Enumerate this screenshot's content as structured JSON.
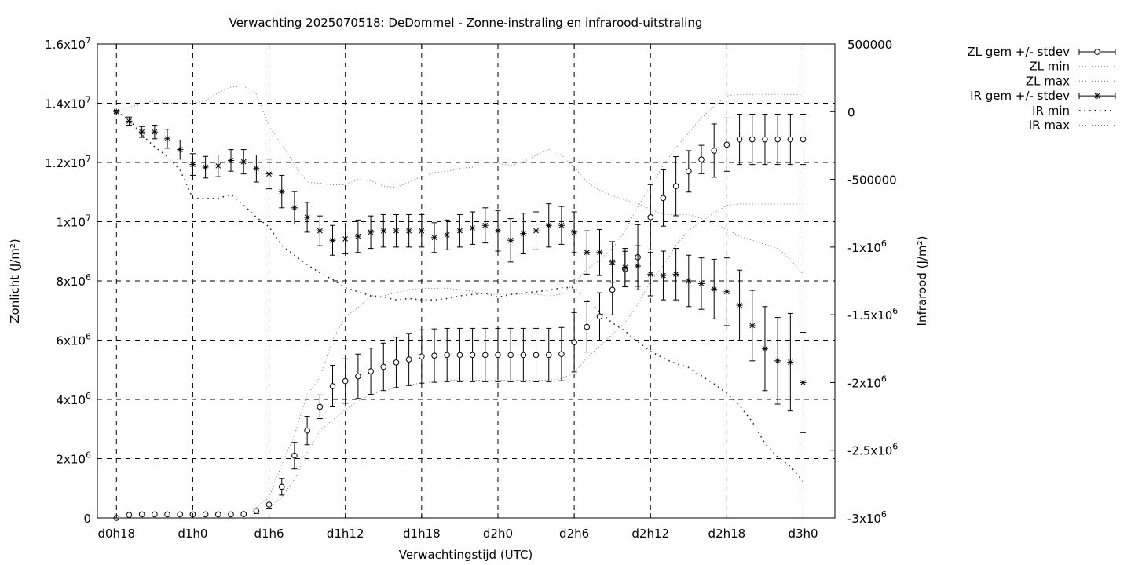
{
  "chart_data": {
    "type": "line",
    "title": "Verwachting 2025070518: DeDommel - Zonne-instraling en infrarood-uitstraling",
    "xlabel": "Verwachtingstijd (UTC)",
    "ylabel": "Zonlicht (J/m²)",
    "y2label": "Infrarood (J/m²)",
    "x_unit": "hours since d0h18",
    "xlim": [
      -1.5,
      56.5
    ],
    "ylim": [
      0,
      16000000
    ],
    "y2lim": [
      -3000000,
      500000
    ],
    "x_ticks": [
      {
        "x": 0,
        "label": "d0h18"
      },
      {
        "x": 6,
        "label": "d1h0"
      },
      {
        "x": 12,
        "label": "d1h6"
      },
      {
        "x": 18,
        "label": "d1h12"
      },
      {
        "x": 24,
        "label": "d1h18"
      },
      {
        "x": 30,
        "label": "d2h0"
      },
      {
        "x": 36,
        "label": "d2h6"
      },
      {
        "x": 42,
        "label": "d2h12"
      },
      {
        "x": 48,
        "label": "d2h18"
      },
      {
        "x": 54,
        "label": "d3h0"
      }
    ],
    "y_ticks": [
      {
        "v": 0,
        "mant": "0",
        "exp": ""
      },
      {
        "v": 2000000,
        "mant": "2x10",
        "exp": "6"
      },
      {
        "v": 4000000,
        "mant": "4x10",
        "exp": "6"
      },
      {
        "v": 6000000,
        "mant": "6x10",
        "exp": "6"
      },
      {
        "v": 8000000,
        "mant": "8x10",
        "exp": "6"
      },
      {
        "v": 10000000,
        "mant": "1x10",
        "exp": "7"
      },
      {
        "v": 12000000,
        "mant": "1.2x10",
        "exp": "7"
      },
      {
        "v": 14000000,
        "mant": "1.4x10",
        "exp": "7"
      },
      {
        "v": 16000000,
        "mant": "1.6x10",
        "exp": "7"
      }
    ],
    "y2_ticks": [
      {
        "v": 500000,
        "mant": "500000",
        "exp": ""
      },
      {
        "v": 0,
        "mant": "0",
        "exp": ""
      },
      {
        "v": -500000,
        "mant": "-500000",
        "exp": ""
      },
      {
        "v": -1000000,
        "mant": "-1x10",
        "exp": "6"
      },
      {
        "v": -1500000,
        "mant": "-1.5x10",
        "exp": "6"
      },
      {
        "v": -2000000,
        "mant": "-2x10",
        "exp": "6"
      },
      {
        "v": -2500000,
        "mant": "-2.5x10",
        "exp": "6"
      },
      {
        "v": -3000000,
        "mant": "-3x10",
        "exp": "6"
      }
    ],
    "grid": true,
    "legend_position": "top-right, outside plot",
    "series": [
      {
        "name": "ZL gem +/- stdev",
        "axis": "y",
        "style": "points-errorbars",
        "marker": "circle",
        "x": [
          0,
          1,
          2,
          3,
          4,
          5,
          6,
          7,
          8,
          9,
          10,
          11,
          12,
          13,
          14,
          15,
          16,
          17,
          18,
          19,
          20,
          21,
          22,
          23,
          24,
          25,
          26,
          27,
          28,
          29,
          30,
          31,
          32,
          33,
          34,
          35,
          36,
          37,
          38,
          39,
          40,
          41,
          42,
          43,
          44,
          45,
          46,
          47,
          48,
          49,
          50,
          51,
          52,
          53,
          54
        ],
        "y": [
          0,
          100000,
          120000,
          120000,
          120000,
          120000,
          120000,
          120000,
          120000,
          120000,
          130000,
          230000,
          450000,
          1050000,
          2100000,
          2950000,
          3750000,
          4450000,
          4620000,
          4780000,
          4950000,
          5100000,
          5250000,
          5350000,
          5450000,
          5480000,
          5500000,
          5500000,
          5500000,
          5500000,
          5500000,
          5500000,
          5500000,
          5500000,
          5500000,
          5530000,
          5930000,
          6450000,
          6800000,
          7700000,
          8400000,
          8800000,
          10150000,
          10800000,
          11200000,
          11700000,
          12100000,
          12400000,
          12600000,
          12780000,
          12780000,
          12780000,
          12780000,
          12780000,
          12780000
        ],
        "stdev": [
          0,
          20000,
          20000,
          20000,
          20000,
          20000,
          20000,
          20000,
          20000,
          20000,
          30000,
          80000,
          120000,
          280000,
          450000,
          480000,
          400000,
          700000,
          750000,
          750000,
          780000,
          800000,
          850000,
          880000,
          900000,
          900000,
          900000,
          900000,
          900000,
          900000,
          900000,
          900000,
          900000,
          900000,
          900000,
          900000,
          1000000,
          850000,
          800000,
          850000,
          600000,
          1100000,
          1100000,
          950000,
          1000000,
          700000,
          480000,
          900000,
          900000,
          850000,
          850000,
          850000,
          850000,
          850000,
          850000
        ]
      },
      {
        "name": "ZL min",
        "axis": "y",
        "style": "dotted",
        "x": [
          11,
          12,
          13,
          14,
          15,
          16,
          17,
          18,
          19,
          20,
          21,
          22,
          23,
          24,
          25,
          26,
          27,
          28,
          29,
          30,
          31,
          32,
          33,
          34,
          35,
          36,
          37,
          38,
          39,
          40,
          41,
          42,
          43,
          44,
          45,
          46,
          47,
          48,
          49,
          50,
          51,
          52,
          53,
          54
        ],
        "y": [
          150000,
          350000,
          700000,
          1300000,
          2200000,
          2950000,
          3300000,
          3650000,
          3950000,
          4150000,
          4300000,
          4400000,
          4500000,
          4550000,
          4600000,
          4650000,
          4650000,
          4650000,
          4650000,
          4650000,
          4650000,
          4650000,
          4650000,
          4650000,
          4700000,
          4900000,
          5400000,
          5800000,
          6200000,
          6600000,
          7200000,
          8000000,
          8500000,
          9200000,
          9700000,
          10000000,
          10300000,
          10550000,
          10600000,
          10600000,
          10600000,
          10600000,
          10600000,
          10600000
        ]
      },
      {
        "name": "ZL max",
        "axis": "y",
        "style": "dotted",
        "x": [
          11,
          12,
          13,
          14,
          15,
          16,
          17,
          18,
          19,
          20,
          21,
          22,
          23,
          24,
          25,
          26,
          27,
          28,
          29,
          30,
          31,
          32,
          33,
          34,
          35,
          36,
          37,
          38,
          39,
          40,
          41,
          42,
          43,
          44,
          45,
          46,
          47,
          48,
          49,
          50,
          51,
          52,
          53,
          54
        ],
        "y": [
          350000,
          700000,
          1800000,
          2800000,
          4150000,
          4750000,
          6000000,
          6800000,
          7100000,
          7500000,
          7500000,
          7600000,
          7700000,
          7750000,
          7750000,
          7750000,
          7700000,
          7650000,
          7550000,
          7550000,
          7550000,
          7550000,
          7550000,
          7500000,
          7550000,
          7900000,
          8400000,
          8700000,
          9100000,
          9700000,
          10500000,
          11200000,
          11900000,
          12500000,
          13000000,
          13500000,
          13900000,
          14250000,
          14300000,
          14300000,
          14300000,
          14300000,
          14300000,
          14300000
        ]
      },
      {
        "name": "IR gem +/- stdev",
        "axis": "y2",
        "style": "points-errorbars",
        "marker": "star",
        "x": [
          0,
          1,
          2,
          3,
          4,
          5,
          6,
          7,
          8,
          9,
          10,
          11,
          12,
          13,
          14,
          15,
          16,
          17,
          18,
          19,
          20,
          21,
          22,
          23,
          24,
          25,
          26,
          27,
          28,
          29,
          30,
          31,
          32,
          33,
          34,
          35,
          36,
          37,
          38,
          39,
          40,
          41,
          42,
          43,
          44,
          45,
          46,
          47,
          48,
          49,
          50,
          51,
          52,
          53,
          54
        ],
        "y": [
          0,
          -70000,
          -150000,
          -150000,
          -200000,
          -280000,
          -390000,
          -410000,
          -400000,
          -360000,
          -370000,
          -420000,
          -460000,
          -590000,
          -710000,
          -780000,
          -880000,
          -950000,
          -940000,
          -920000,
          -890000,
          -880000,
          -880000,
          -880000,
          -880000,
          -930000,
          -910000,
          -880000,
          -860000,
          -840000,
          -880000,
          -950000,
          -900000,
          -880000,
          -840000,
          -840000,
          -890000,
          -1040000,
          -1040000,
          -1110000,
          -1150000,
          -1140000,
          -1200000,
          -1210000,
          -1200000,
          -1250000,
          -1270000,
          -1310000,
          -1330000,
          -1430000,
          -1580000,
          -1750000,
          -1840000,
          -1850000,
          -2000000
        ],
        "stdev": [
          10000,
          30000,
          40000,
          50000,
          70000,
          70000,
          80000,
          80000,
          80000,
          80000,
          90000,
          100000,
          110000,
          120000,
          120000,
          110000,
          110000,
          110000,
          110000,
          120000,
          120000,
          120000,
          120000,
          120000,
          120000,
          110000,
          110000,
          120000,
          120000,
          130000,
          150000,
          160000,
          150000,
          140000,
          160000,
          140000,
          150000,
          160000,
          170000,
          150000,
          140000,
          150000,
          160000,
          180000,
          190000,
          190000,
          190000,
          220000,
          250000,
          260000,
          260000,
          310000,
          320000,
          360000,
          370000
        ]
      },
      {
        "name": "IR min",
        "axis": "y2",
        "style": "dotted",
        "x": [
          0,
          1,
          2,
          3,
          4,
          5,
          6,
          7,
          8,
          9,
          10,
          11,
          12,
          13,
          14,
          15,
          16,
          17,
          18,
          19,
          20,
          21,
          22,
          23,
          24,
          25,
          26,
          27,
          28,
          29,
          30,
          31,
          32,
          33,
          34,
          35,
          36,
          37,
          38,
          39,
          40,
          41,
          42,
          43,
          44,
          45,
          46,
          47,
          48,
          49,
          50,
          51,
          52,
          53,
          54
        ],
        "y": [
          0,
          -60000,
          -170000,
          -260000,
          -330000,
          -430000,
          -640000,
          -640000,
          -640000,
          -610000,
          -690000,
          -780000,
          -850000,
          -990000,
          -1060000,
          -1130000,
          -1190000,
          -1240000,
          -1300000,
          -1330000,
          -1360000,
          -1370000,
          -1390000,
          -1380000,
          -1390000,
          -1390000,
          -1380000,
          -1360000,
          -1350000,
          -1340000,
          -1370000,
          -1350000,
          -1340000,
          -1330000,
          -1320000,
          -1300000,
          -1300000,
          -1390000,
          -1480000,
          -1560000,
          -1620000,
          -1700000,
          -1770000,
          -1820000,
          -1860000,
          -1890000,
          -1950000,
          -2010000,
          -2080000,
          -2170000,
          -2290000,
          -2450000,
          -2550000,
          -2620000,
          -2730000
        ]
      },
      {
        "name": "IR max",
        "axis": "y2",
        "style": "dotted",
        "x": [
          0,
          1,
          2,
          3,
          4,
          5,
          6,
          7,
          8,
          9,
          10,
          11,
          12,
          13,
          14,
          15,
          16,
          17,
          18,
          19,
          20,
          21,
          22,
          23,
          24,
          25,
          26,
          27,
          28,
          29,
          30,
          31,
          32,
          33,
          34,
          35,
          36,
          37,
          38,
          39,
          40,
          41,
          42,
          43,
          44,
          45,
          46,
          47,
          48,
          49,
          50,
          51,
          52,
          53,
          54
        ],
        "y": [
          0,
          30000,
          60000,
          80000,
          60000,
          70000,
          60000,
          80000,
          140000,
          180000,
          190000,
          130000,
          -110000,
          -240000,
          -390000,
          -520000,
          -530000,
          -540000,
          -540000,
          -500000,
          -510000,
          -550000,
          -560000,
          -520000,
          -480000,
          -450000,
          -440000,
          -420000,
          -410000,
          -370000,
          -380000,
          -400000,
          -370000,
          -320000,
          -280000,
          -320000,
          -410000,
          -520000,
          -580000,
          -620000,
          -650000,
          -680000,
          -720000,
          -760000,
          -760000,
          -760000,
          -790000,
          -830000,
          -870000,
          -920000,
          -950000,
          -980000,
          -1010000,
          -1090000,
          -1200000
        ]
      }
    ],
    "legend": [
      {
        "label": "ZL gem +/- stdev",
        "style": "errorbar-circle"
      },
      {
        "label": "ZL min",
        "style": "dotted"
      },
      {
        "label": "ZL max",
        "style": "dotted"
      },
      {
        "label": "IR gem +/- stdev",
        "style": "errorbar-star"
      },
      {
        "label": "IR min",
        "style": "dotted-sparse"
      },
      {
        "label": "IR max",
        "style": "dotted"
      }
    ]
  }
}
